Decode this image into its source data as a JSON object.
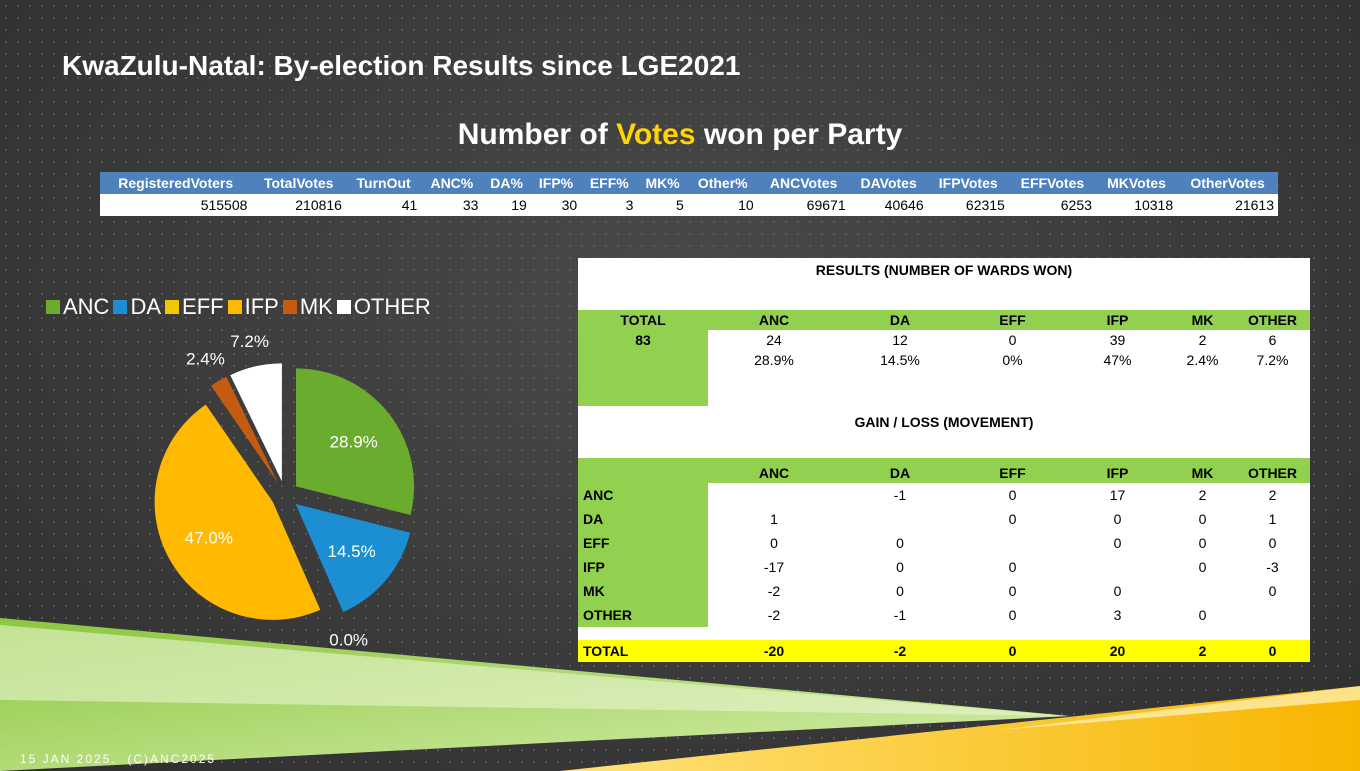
{
  "title": "KwaZulu-Natal: By-election Results since LGE2021",
  "subtitle": {
    "before": "Number of",
    "highlight": "Votes",
    "after": "won per Party"
  },
  "summary_table": {
    "headers": [
      "RegisteredVoters",
      "TotalVotes",
      "TurnOut",
      "ANC%",
      "DA%",
      "IFP%",
      "EFF%",
      "MK%",
      "Other%",
      "ANCVotes",
      "DAVotes",
      "IFPVotes",
      "EFFVotes",
      "MKVotes",
      "OtherVotes"
    ],
    "values": [
      515508,
      210816,
      41,
      33,
      19,
      30,
      3,
      5,
      10,
      69671,
      40646,
      62315,
      6253,
      10318,
      21613
    ]
  },
  "chart_data": {
    "type": "pie",
    "categories": [
      "ANC",
      "DA",
      "EFF",
      "IFP",
      "MK",
      "OTHER"
    ],
    "values": [
      28.9,
      14.5,
      0,
      47,
      2.4,
      7.2
    ],
    "value_labels": [
      "28.9%",
      "14.5%",
      "0.0%",
      "47.0%",
      "2.4%",
      "7.2%"
    ],
    "colors": [
      "#6aac2e",
      "#1c8ed2",
      "#f0c800",
      "#ffb900",
      "#c55a11",
      "#ffffff"
    ]
  },
  "results_table": {
    "title": "RESULTS (NUMBER OF WARDS WON)",
    "headers": [
      "TOTAL",
      "ANC",
      "DA",
      "EFF",
      "IFP",
      "MK",
      "OTHER"
    ],
    "total": 83,
    "counts": [
      24,
      12,
      0,
      39,
      2,
      6
    ],
    "percentages": [
      "28.9%",
      "14.5%",
      "0%",
      "47%",
      "2.4%",
      "7.2%"
    ]
  },
  "movement_table": {
    "title": "GAIN / LOSS (MOVEMENT)",
    "headers": [
      "ANC",
      "DA",
      "EFF",
      "IFP",
      "MK",
      "OTHER"
    ],
    "rows": [
      {
        "label": "ANC",
        "values": [
          null,
          -1,
          0,
          17,
          2,
          2
        ]
      },
      {
        "label": "DA",
        "values": [
          1,
          null,
          0,
          0,
          0,
          1
        ]
      },
      {
        "label": "EFF",
        "values": [
          0,
          0,
          null,
          0,
          0,
          0
        ]
      },
      {
        "label": "IFP",
        "values": [
          -17,
          0,
          0,
          null,
          0,
          -3
        ]
      },
      {
        "label": "MK",
        "values": [
          -2,
          0,
          0,
          0,
          null,
          0
        ]
      },
      {
        "label": "OTHER",
        "values": [
          -2,
          -1,
          0,
          3,
          0,
          null
        ]
      }
    ],
    "total": {
      "label": "TOTAL",
      "values": [
        -20,
        -2,
        0,
        20,
        2,
        0
      ]
    }
  },
  "footer": "15 JAN 2025.  (C)ANC2025"
}
